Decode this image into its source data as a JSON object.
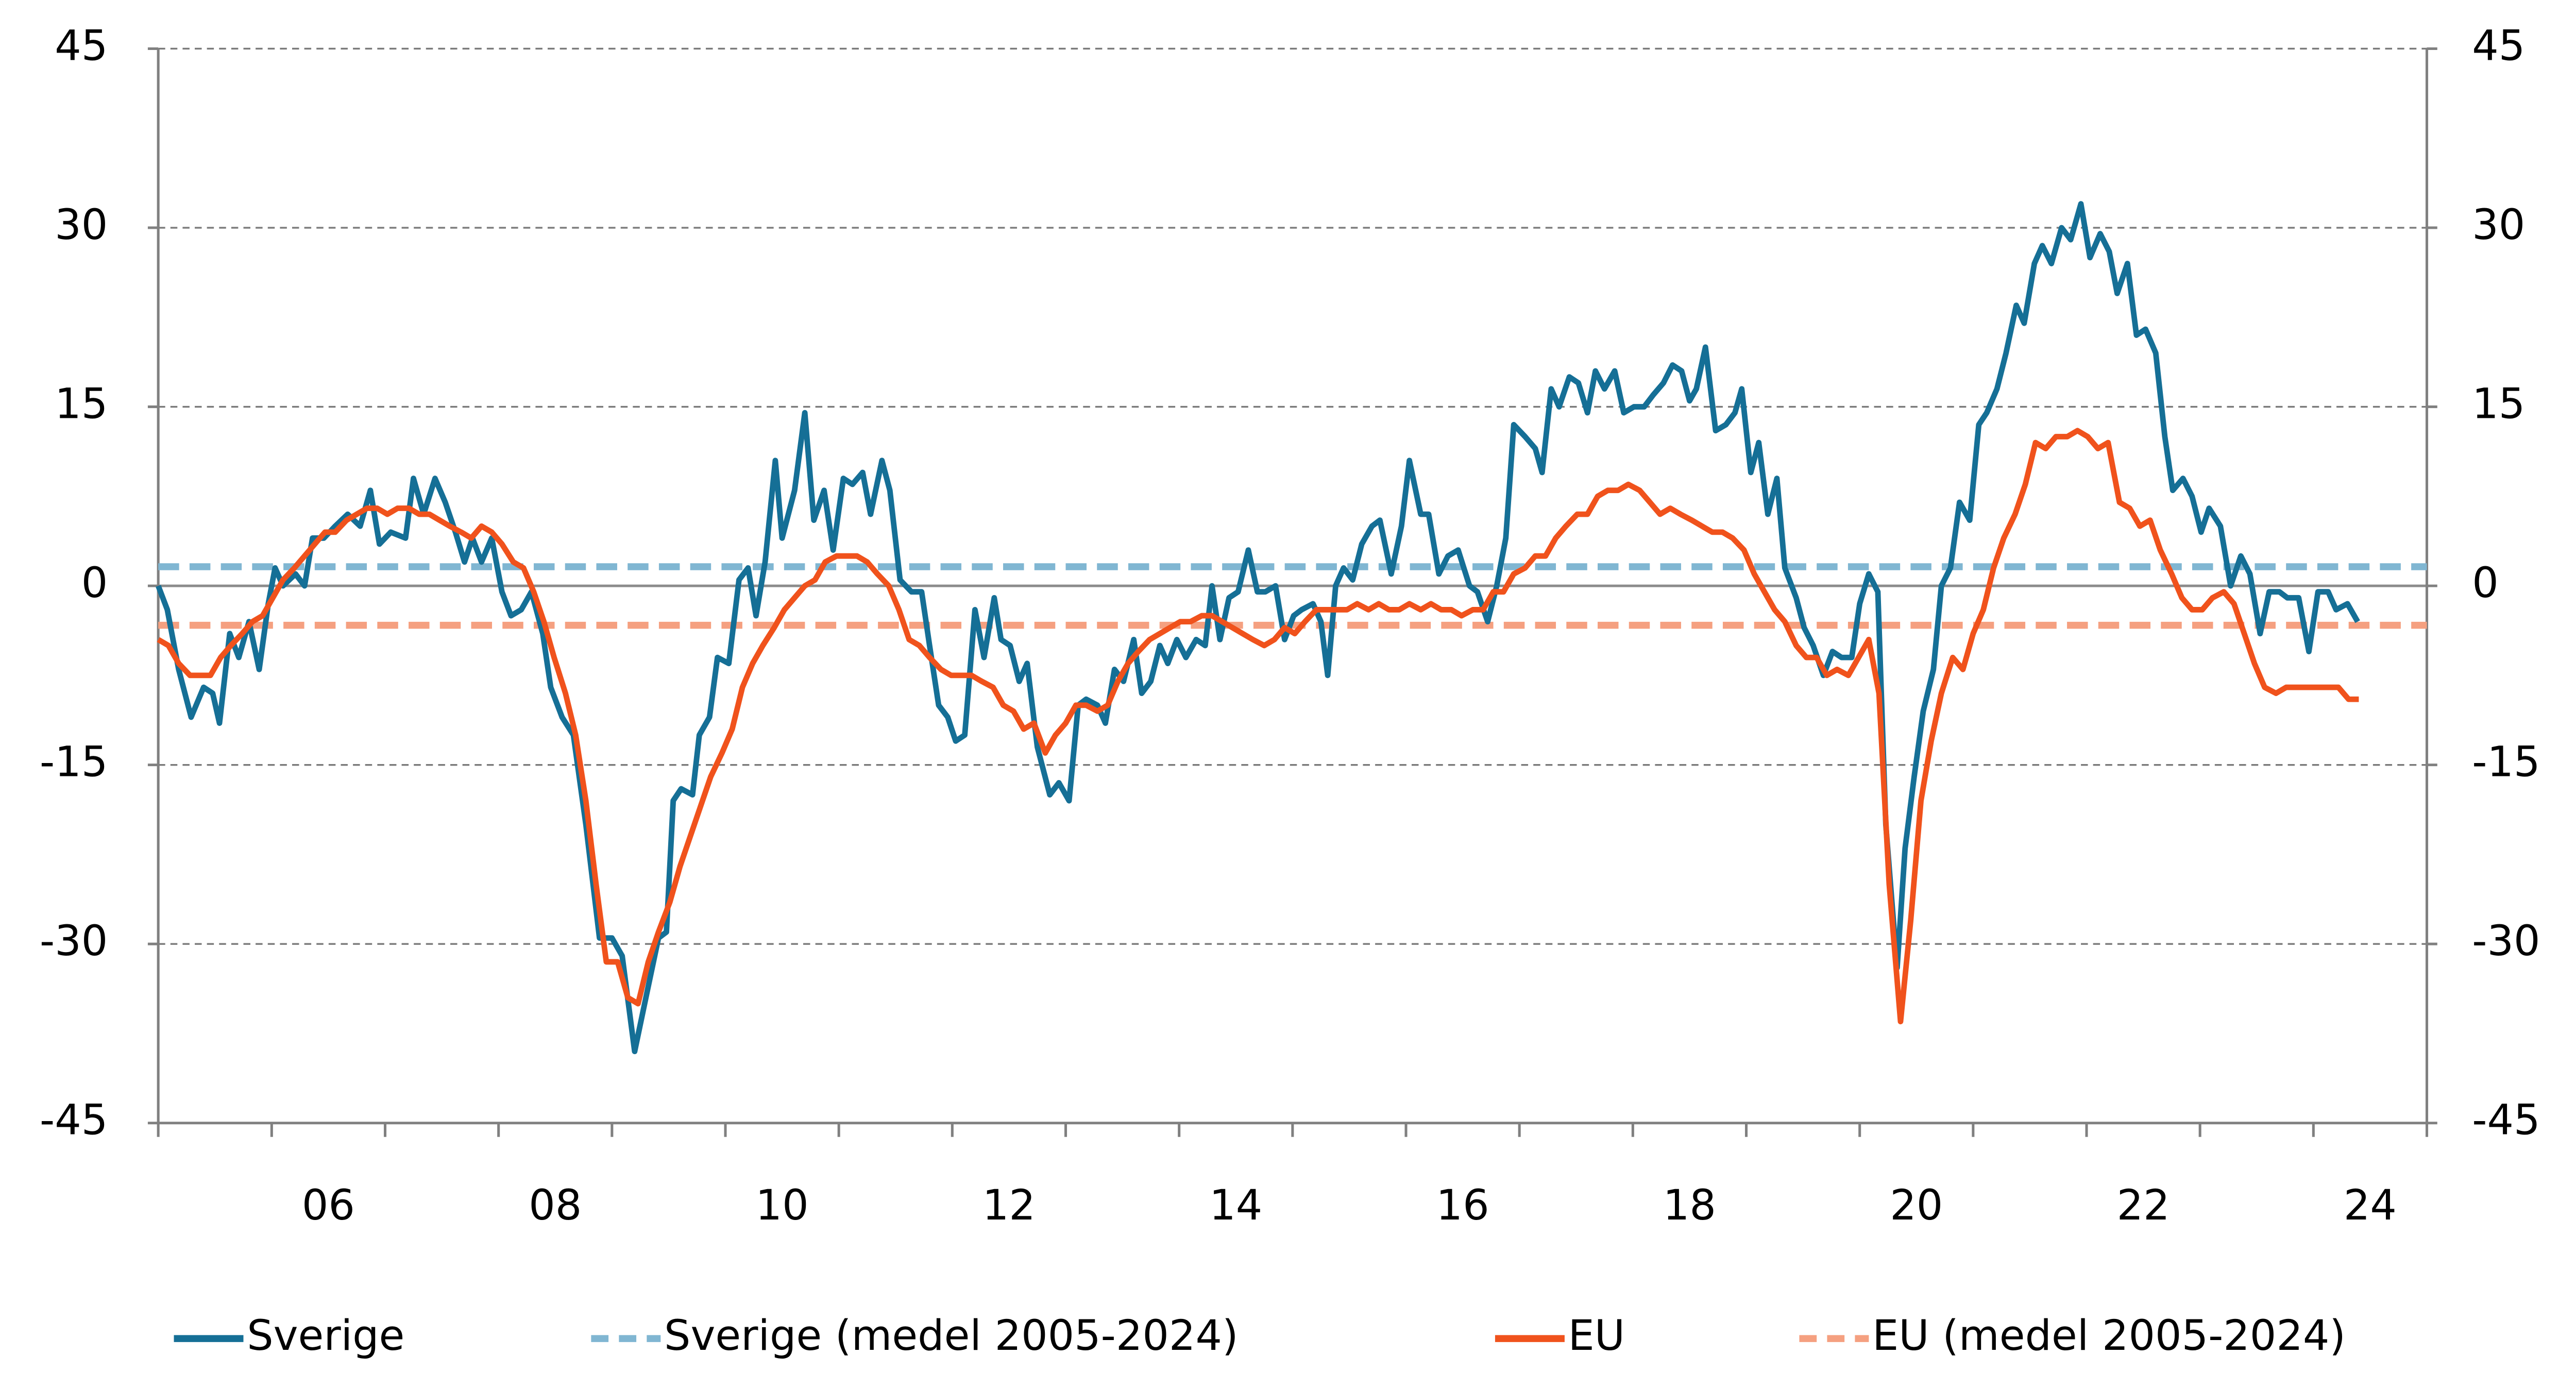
{
  "chart_data": {
    "type": "line",
    "xlim": [
      2005,
      2025
    ],
    "xticks": [
      {
        "value": 2006.5,
        "label": "06"
      },
      {
        "value": 2008.5,
        "label": "08"
      },
      {
        "value": 2010.5,
        "label": "10"
      },
      {
        "value": 2012.5,
        "label": "12"
      },
      {
        "value": 2014.5,
        "label": "14"
      },
      {
        "value": 2016.5,
        "label": "16"
      },
      {
        "value": 2018.5,
        "label": "18"
      },
      {
        "value": 2020.5,
        "label": "20"
      },
      {
        "value": 2022.5,
        "label": "22"
      },
      {
        "value": 2024.5,
        "label": "24"
      }
    ],
    "ylim": [
      -45,
      45
    ],
    "yticks": [
      -45,
      -30,
      -15,
      0,
      15,
      30,
      45
    ],
    "y2lim": [
      -45,
      45
    ],
    "y2ticks": [
      -45,
      -30,
      -15,
      0,
      15,
      30,
      45
    ],
    "grid": true,
    "legend": "bottom",
    "series": [
      {
        "name": "Sverige",
        "color": "#156f96",
        "x": [
          2005.0,
          2005.08,
          2005.18,
          2005.29,
          2005.4,
          2005.48,
          2005.54,
          2005.63,
          2005.71,
          2005.8,
          2005.89,
          2005.97,
          2006.03,
          2006.1,
          2006.21,
          2006.29,
          2006.36,
          2006.46,
          2006.56,
          2006.67,
          2006.78,
          2006.87,
          2006.95,
          2007.05,
          2007.18,
          2007.25,
          2007.34,
          2007.44,
          2007.53,
          2007.62,
          2007.7,
          2007.77,
          2007.85,
          2007.94,
          2008.03,
          2008.11,
          2008.2,
          2008.29,
          2008.39,
          2008.46,
          2008.56,
          2008.66,
          2008.77,
          2008.89,
          2009.0,
          2009.09,
          2009.2,
          2009.31,
          2009.41,
          2009.48,
          2009.54,
          2009.61,
          2009.71,
          2009.77,
          2009.86,
          2009.93,
          2010.03,
          2010.12,
          2010.2,
          2010.27,
          2010.35,
          2010.44,
          2010.5,
          2010.61,
          2010.7,
          2010.78,
          2010.87,
          2010.95,
          2011.04,
          2011.12,
          2011.21,
          2011.28,
          2011.38,
          2011.45,
          2011.54,
          2011.64,
          2011.73,
          2011.8,
          2011.88,
          2011.96,
          2012.03,
          2012.11,
          2012.2,
          2012.28,
          2012.37,
          2012.43,
          2012.51,
          2012.59,
          2012.66,
          2012.75,
          2012.86,
          2012.94,
          2013.03,
          2013.11,
          2013.18,
          2013.28,
          2013.35,
          2013.43,
          2013.51,
          2013.6,
          2013.67,
          2013.75,
          2013.83,
          2013.9,
          2013.98,
          2014.06,
          2014.15,
          2014.23,
          2014.29,
          2014.36,
          2014.44,
          2014.52,
          2014.61,
          2014.69,
          2014.76,
          2014.85,
          2014.93,
          2015.01,
          2015.08,
          2015.18,
          2015.25,
          2015.31,
          2015.38,
          2015.45,
          2015.53,
          2015.61,
          2015.7,
          2015.77,
          2015.87,
          2015.96,
          2016.03,
          2016.13,
          2016.2,
          2016.29,
          2016.37,
          2016.46,
          2016.56,
          2016.63,
          2016.72,
          2016.8,
          2016.88,
          2016.95,
          2017.05,
          2017.14,
          2017.2,
          2017.28,
          2017.35,
          2017.44,
          2017.52,
          2017.6,
          2017.67,
          2017.75,
          2017.84,
          2017.92,
          2018.01,
          2018.1,
          2018.18,
          2018.27,
          2018.35,
          2018.43,
          2018.5,
          2018.56,
          2018.64,
          2018.73,
          2018.82,
          2018.9,
          2018.96,
          2019.04,
          2019.11,
          2019.19,
          2019.27,
          2019.34,
          2019.44,
          2019.51,
          2019.59,
          2019.68,
          2019.76,
          2019.84,
          2019.93,
          2020.0,
          2020.08,
          2020.16,
          2020.23,
          2020.33,
          2020.4,
          2020.48,
          2020.56,
          2020.65,
          2020.72,
          2020.8,
          2020.88,
          2020.97,
          2021.05,
          2021.12,
          2021.21,
          2021.29,
          2021.38,
          2021.45,
          2021.54,
          2021.61,
          2021.69,
          2021.78,
          2021.86,
          2021.95,
          2022.03,
          2022.12,
          2022.2,
          2022.27,
          2022.36,
          2022.44,
          2022.52,
          2022.61,
          2022.69,
          2022.76,
          2022.85,
          2022.93,
          2023.01,
          2023.08,
          2023.18,
          2023.27,
          2023.36,
          2023.44,
          2023.53,
          2023.61,
          2023.7,
          2023.77,
          2023.87,
          2023.96,
          2024.04,
          2024.13,
          2024.2,
          2024.3,
          2024.39
        ],
        "values": [
          0,
          -2,
          -7,
          -11,
          -8.5,
          -9,
          -11.5,
          -4,
          -6,
          -3,
          -7,
          -1.5,
          1.5,
          0,
          1,
          0,
          4,
          4,
          5,
          6,
          5,
          8,
          3.5,
          4.5,
          4,
          9,
          6,
          9,
          7,
          4.5,
          2,
          4,
          2,
          4,
          -0.5,
          -2.5,
          -2,
          -0.5,
          -4,
          -8.5,
          -11,
          -12.5,
          -20,
          -29.5,
          -29.5,
          -31,
          -39,
          -34,
          -29.5,
          -29,
          -18,
          -17,
          -17.5,
          -12.5,
          -11,
          -6,
          -6.5,
          0.5,
          1.5,
          -2.5,
          2,
          10.5,
          4,
          8,
          14.5,
          5.5,
          8,
          3,
          9,
          8.5,
          9.5,
          6,
          10.5,
          8,
          0.5,
          -0.5,
          -0.5,
          -5,
          -10,
          -11,
          -13,
          -12.5,
          -2,
          -6,
          -1,
          -4.5,
          -5,
          -8,
          -6.5,
          -13.5,
          -17.5,
          -16.5,
          -18,
          -10,
          -9.5,
          -10,
          -11.5,
          -7,
          -8,
          -4.5,
          -9,
          -8,
          -5,
          -6.5,
          -4.5,
          -6,
          -4.5,
          -5,
          0,
          -4.5,
          -1,
          -0.5,
          3,
          -0.5,
          -0.5,
          0,
          -4.5,
          -2.5,
          -2,
          -1.5,
          -3,
          -7.5,
          0,
          1.5,
          0.5,
          3.5,
          5,
          5.5,
          1,
          5,
          10.5,
          6,
          6,
          1,
          2.5,
          3,
          0,
          -0.5,
          -3,
          0,
          4,
          13.5,
          12.5,
          11.5,
          9.5,
          16.5,
          15,
          17.5,
          17,
          14.5,
          18,
          16.5,
          18,
          14.5,
          15,
          15,
          16,
          17,
          18.5,
          18,
          15.5,
          16.5,
          20,
          13,
          13.5,
          14.5,
          16.5,
          9.5,
          12,
          6,
          9,
          1.5,
          -1,
          -3.5,
          -5,
          -7.5,
          -5.5,
          -6,
          -6,
          -1.5,
          1,
          -0.5,
          -20,
          -32,
          -22,
          -16,
          -10.5,
          -7,
          0,
          1.5,
          7,
          5.5,
          13.5,
          14.5,
          16.5,
          19.5,
          23.5,
          22,
          27,
          28.5,
          27,
          30,
          29,
          32,
          27.5,
          29.5,
          28,
          24.5,
          27,
          21,
          21.5,
          19.5,
          12.5,
          8,
          9,
          7.5,
          4.5,
          6.5,
          5,
          0,
          2.5,
          1,
          -4,
          -0.5,
          -0.5,
          -1,
          -1,
          -5.5,
          -0.5,
          -0.5,
          -2,
          -1.5,
          -3
        ]
      },
      {
        "name": "Sverige (medel 2005-2024)",
        "color": "#80b6d2",
        "dashed": true,
        "value": 1.6
      },
      {
        "name": "EU",
        "color": "#f0521c",
        "x": [
          2005.0,
          2005.09,
          2005.18,
          2005.28,
          2005.37,
          2005.46,
          2005.55,
          2005.64,
          2005.74,
          2005.83,
          2005.92,
          2006.01,
          2006.1,
          2006.2,
          2006.29,
          2006.38,
          2006.47,
          2006.56,
          2006.66,
          2006.75,
          2006.84,
          2006.93,
          2007.02,
          2007.11,
          2007.21,
          2007.3,
          2007.39,
          2007.48,
          2007.57,
          2007.67,
          2007.76,
          2007.85,
          2007.94,
          2008.03,
          2008.13,
          2008.22,
          2008.31,
          2008.4,
          2008.49,
          2008.59,
          2008.68,
          2008.77,
          2008.86,
          2008.95,
          2009.05,
          2009.14,
          2009.23,
          2009.32,
          2009.41,
          2009.51,
          2009.6,
          2009.69,
          2009.78,
          2009.87,
          2009.97,
          2010.06,
          2010.15,
          2010.24,
          2010.33,
          2010.43,
          2010.52,
          2010.61,
          2010.7,
          2010.79,
          2010.88,
          2010.98,
          2011.07,
          2011.16,
          2011.25,
          2011.34,
          2011.44,
          2011.53,
          2011.62,
          2011.71,
          2011.8,
          2011.9,
          2011.99,
          2012.08,
          2012.17,
          2012.26,
          2012.36,
          2012.45,
          2012.54,
          2012.63,
          2012.72,
          2012.82,
          2012.91,
          2013.0,
          2013.09,
          2013.18,
          2013.28,
          2013.37,
          2013.46,
          2013.55,
          2013.64,
          2013.74,
          2013.83,
          2013.92,
          2014.01,
          2014.1,
          2014.2,
          2014.29,
          2014.38,
          2014.47,
          2014.56,
          2014.65,
          2014.75,
          2014.84,
          2014.93,
          2015.02,
          2015.11,
          2015.21,
          2015.3,
          2015.39,
          2015.48,
          2015.57,
          2015.67,
          2015.76,
          2015.85,
          2015.94,
          2016.03,
          2016.13,
          2016.22,
          2016.31,
          2016.4,
          2016.49,
          2016.59,
          2016.68,
          2016.77,
          2016.86,
          2016.95,
          2017.05,
          2017.14,
          2017.23,
          2017.32,
          2017.41,
          2017.51,
          2017.6,
          2017.69,
          2017.78,
          2017.87,
          2017.96,
          2018.06,
          2018.15,
          2018.24,
          2018.33,
          2018.42,
          2018.52,
          2018.61,
          2018.7,
          2018.79,
          2018.88,
          2018.98,
          2019.07,
          2019.16,
          2019.25,
          2019.34,
          2019.44,
          2019.53,
          2019.62,
          2019.71,
          2019.8,
          2019.9,
          2019.99,
          2020.08,
          2020.17,
          2020.26,
          2020.36,
          2020.45,
          2020.54,
          2020.63,
          2020.72,
          2020.82,
          2020.91,
          2021.0,
          2021.09,
          2021.18,
          2021.27,
          2021.37,
          2021.46,
          2021.55,
          2021.64,
          2021.73,
          2021.83,
          2021.92,
          2022.01,
          2022.1,
          2022.19,
          2022.29,
          2022.38,
          2022.47,
          2022.56,
          2022.65,
          2022.75,
          2022.84,
          2022.93,
          2023.02,
          2023.11,
          2023.21,
          2023.3,
          2023.39,
          2023.48,
          2023.57,
          2023.67,
          2023.76,
          2023.85,
          2023.94,
          2024.03,
          2024.13,
          2024.22,
          2024.31,
          2024.4
        ],
        "values": [
          -4.5,
          -5,
          -6.5,
          -7.5,
          -7.5,
          -7.5,
          -6,
          -5,
          -4,
          -3,
          -2.5,
          -1,
          0.5,
          1.5,
          2.5,
          3.5,
          4.5,
          4.5,
          5.5,
          6,
          6.5,
          6.5,
          6,
          6.5,
          6.5,
          6,
          6,
          5.5,
          5,
          4.5,
          4,
          5,
          4.5,
          3.5,
          2,
          1.5,
          -0.5,
          -3,
          -6,
          -9,
          -12.5,
          -18,
          -25,
          -31.5,
          -31.5,
          -34.5,
          -35,
          -31.5,
          -29,
          -26.5,
          -23.5,
          -21,
          -18.5,
          -16,
          -14,
          -12,
          -8.5,
          -6.5,
          -5,
          -3.5,
          -2,
          -1,
          0,
          0.5,
          2,
          2.5,
          2.5,
          2.5,
          2,
          1,
          0,
          -2,
          -4.5,
          -5,
          -6,
          -7,
          -7.5,
          -7.5,
          -7.5,
          -8,
          -8.5,
          -10,
          -10.5,
          -12,
          -11.5,
          -14,
          -12.5,
          -11.5,
          -10,
          -10,
          -10.5,
          -10,
          -8,
          -6.5,
          -5.5,
          -4.5,
          -4,
          -3.5,
          -3,
          -3,
          -2.5,
          -2.5,
          -3,
          -3.5,
          -4,
          -4.5,
          -5,
          -4.5,
          -3.5,
          -4,
          -3,
          -2,
          -2,
          -2,
          -2,
          -1.5,
          -2,
          -1.5,
          -2,
          -2,
          -1.5,
          -2,
          -1.5,
          -2,
          -2,
          -2.5,
          -2,
          -2,
          -0.5,
          -0.5,
          1,
          1.5,
          2.5,
          2.5,
          4,
          5,
          6,
          6,
          7.5,
          8,
          8,
          8.5,
          8,
          7,
          6,
          6.5,
          6,
          5.5,
          5,
          4.5,
          4.5,
          4,
          3,
          1,
          -0.5,
          -2,
          -3,
          -5,
          -6,
          -6,
          -7.5,
          -7,
          -7.5,
          -6,
          -4.5,
          -9,
          -25,
          -36.5,
          -28,
          -18,
          -13,
          -9,
          -6,
          -7,
          -4,
          -2,
          1.5,
          4,
          6,
          8.5,
          12,
          11.5,
          12.5,
          12.5,
          13,
          12.5,
          11.5,
          12,
          7,
          6.5,
          5,
          5.5,
          3,
          1,
          -1,
          -2,
          -2,
          -1,
          -0.5,
          -1.5,
          -4,
          -6.5,
          -8.5,
          -9,
          -8.5,
          -8.5,
          -8.5,
          -8.5,
          -8.5,
          -8.5,
          -9.5,
          -9.5
        ]
      },
      {
        "name": "EU (medel 2005-2024)",
        "color": "#f5a080",
        "dashed": true,
        "value": -3.3
      }
    ]
  }
}
